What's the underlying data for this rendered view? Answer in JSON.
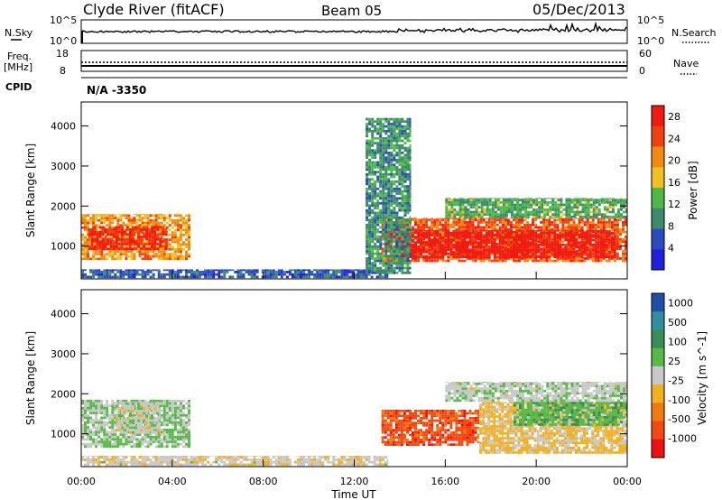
{
  "header": {
    "station": "Clyde River (fitACF)",
    "beam": "Beam 05",
    "date": "05/Dec/2013"
  },
  "noise_panel": {
    "left_label": "N.Sky",
    "right_label": "N.Search",
    "left_ticks": [
      "10^5",
      "10^0"
    ],
    "right_ticks": [
      "10^5",
      "10^0"
    ]
  },
  "freq_panel": {
    "left_label_1": "Freq.",
    "left_label_2": "[MHz]",
    "left_ticks": [
      "18",
      "8"
    ],
    "right_label": "Nave",
    "right_ticks": [
      "60",
      "0"
    ],
    "cpid_label": "CPID",
    "cpid_value": "N/A -3350"
  },
  "colors": {
    "power_scale": [
      "#1f1fe0",
      "#2a4cc0",
      "#3d8a6a",
      "#4db848",
      "#f0c020",
      "#f08a10",
      "#f04010",
      "#f01a10"
    ],
    "velocity_scale": [
      "#1f4fa8",
      "#2f8fa0",
      "#3a8c55",
      "#58b848",
      "#c8c8c8",
      "#f0b020",
      "#f07a10",
      "#f04a10",
      "#f01010"
    ],
    "noise_line": "#000000"
  },
  "time_axis": {
    "ticks": [
      "00:00",
      "04:00",
      "08:00",
      "12:00",
      "16:00",
      "20:00",
      "00:00"
    ],
    "label": "Time UT"
  },
  "chart_data": [
    {
      "type": "heatmap",
      "name": "power",
      "ylabel": "Slant Range [km]",
      "yticks": [
        "1000",
        "2000",
        "3000",
        "4000"
      ],
      "ylim": [
        180,
        4600
      ],
      "xlim": [
        0,
        24
      ],
      "colorbar_label": "Power [dB]",
      "colorbar_ticks": [
        "4",
        "8",
        "12",
        "16",
        "20",
        "24",
        "28"
      ],
      "colorbar_range": [
        0,
        30
      ],
      "regions": [
        {
          "t0": 0.0,
          "t1": 4.8,
          "r0": 650,
          "r1": 1800,
          "value": 20
        },
        {
          "t0": 0.3,
          "t1": 3.8,
          "r0": 900,
          "r1": 1500,
          "value": 27
        },
        {
          "t0": 0.0,
          "t1": 13.5,
          "r0": 200,
          "r1": 420,
          "value": 6
        },
        {
          "t0": 13.2,
          "t1": 24.0,
          "r0": 600,
          "r1": 1700,
          "value": 24
        },
        {
          "t0": 13.8,
          "t1": 23.5,
          "r0": 700,
          "r1": 1400,
          "value": 29
        },
        {
          "t0": 16.0,
          "t1": 24.0,
          "r0": 1700,
          "r1": 2200,
          "value": 12
        },
        {
          "t0": 12.5,
          "t1": 14.5,
          "r0": 300,
          "r1": 4200,
          "value": 10
        }
      ]
    },
    {
      "type": "heatmap",
      "name": "velocity",
      "ylabel": "Slant Range [km]",
      "yticks": [
        "1000",
        "2000",
        "3000",
        "4000"
      ],
      "ylim": [
        180,
        4600
      ],
      "xlim": [
        0,
        24
      ],
      "colorbar_label": "Velocity [m s^-1]",
      "colorbar_ticks": [
        "1000",
        "500",
        "100",
        "25",
        "-25",
        "-100",
        "-500",
        "-1000"
      ],
      "colorbar_range": [
        -1200,
        1200
      ],
      "regions": [
        {
          "t0": 0.0,
          "t1": 4.8,
          "r0": 650,
          "r1": 1850,
          "value": 150
        },
        {
          "t0": 1.5,
          "t1": 3.5,
          "r0": 1000,
          "r1": 1800,
          "value": 10
        },
        {
          "t0": 0.0,
          "t1": 13.5,
          "r0": 200,
          "r1": 450,
          "value": -60
        },
        {
          "t0": 13.2,
          "t1": 17.5,
          "r0": 700,
          "r1": 1600,
          "value": -800
        },
        {
          "t0": 17.5,
          "t1": 24.0,
          "r0": 500,
          "r1": 1800,
          "value": -200
        },
        {
          "t0": 19.0,
          "t1": 24.0,
          "r0": 1200,
          "r1": 1800,
          "value": 300
        },
        {
          "t0": 16.0,
          "t1": 24.0,
          "r0": 1800,
          "r1": 2300,
          "value": 60
        }
      ]
    }
  ]
}
